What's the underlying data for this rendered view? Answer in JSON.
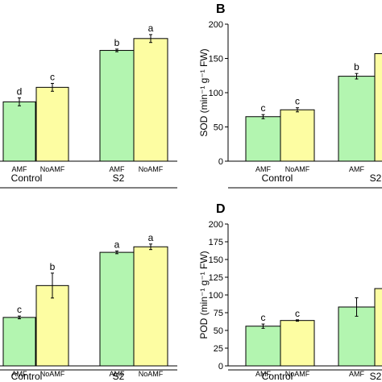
{
  "colors": {
    "amf": "#b3f5b0",
    "noamf": "#fdfda2",
    "stroke": "#000000"
  },
  "chart_data": [
    {
      "type": "bar",
      "panel": "",
      "groups": [
        "Control",
        "S2"
      ],
      "categories": [
        "AMF",
        "NoAMF"
      ],
      "series": [
        {
          "values": [
            45,
            56
          ],
          "errors": [
            3,
            3
          ],
          "letters": [
            "d",
            "c"
          ]
        },
        {
          "values": [
            84,
            93
          ],
          "errors": [
            1,
            3
          ],
          "letters": [
            "b",
            "a"
          ]
        }
      ],
      "ylim": [
        0,
        110
      ],
      "ylabel": "",
      "xlabel": ""
    },
    {
      "type": "bar",
      "panel": "B",
      "groups": [
        "Control",
        "S2"
      ],
      "categories": [
        "AMF",
        "NoAMF"
      ],
      "series": [
        {
          "values": [
            65,
            75
          ],
          "errors": [
            3,
            3
          ],
          "letters": [
            "c",
            "c"
          ]
        },
        {
          "values": [
            124,
            157
          ],
          "errors": [
            4,
            4
          ],
          "letters": [
            "b",
            ""
          ]
        }
      ],
      "yticks": [
        0,
        50,
        100,
        150,
        200
      ],
      "ylim": [
        0,
        200
      ],
      "ylabel": "SOD (min⁻¹ g⁻¹ FW)",
      "xlabel": ""
    },
    {
      "type": "bar",
      "panel": "",
      "groups": [
        "Control",
        "S2"
      ],
      "categories": [
        "AMF",
        "NoAMF"
      ],
      "series": [
        {
          "values": [
            35,
            58
          ],
          "errors": [
            1,
            9
          ],
          "letters": [
            "c",
            "b"
          ]
        },
        {
          "values": [
            82,
            86
          ],
          "errors": [
            1,
            2
          ],
          "letters": [
            "a",
            "a"
          ]
        }
      ],
      "ylim": [
        0,
        110
      ],
      "ylabel": "",
      "xlabel": ""
    },
    {
      "type": "bar",
      "panel": "D",
      "groups": [
        "Control",
        "S2"
      ],
      "categories": [
        "AMF",
        "NoAMF"
      ],
      "series": [
        {
          "values": [
            56,
            64
          ],
          "errors": [
            3,
            1
          ],
          "letters": [
            "c",
            "c"
          ]
        },
        {
          "values": [
            83,
            109
          ],
          "errors": [
            13,
            2
          ],
          "letters": [
            "",
            ""
          ]
        }
      ],
      "yticks": [
        0,
        25,
        50,
        75,
        100,
        125,
        150,
        175,
        200
      ],
      "ylim": [
        0,
        200
      ],
      "ylabel": "POD (min⁻¹ g⁻¹ FW)",
      "xlabel": ""
    }
  ]
}
